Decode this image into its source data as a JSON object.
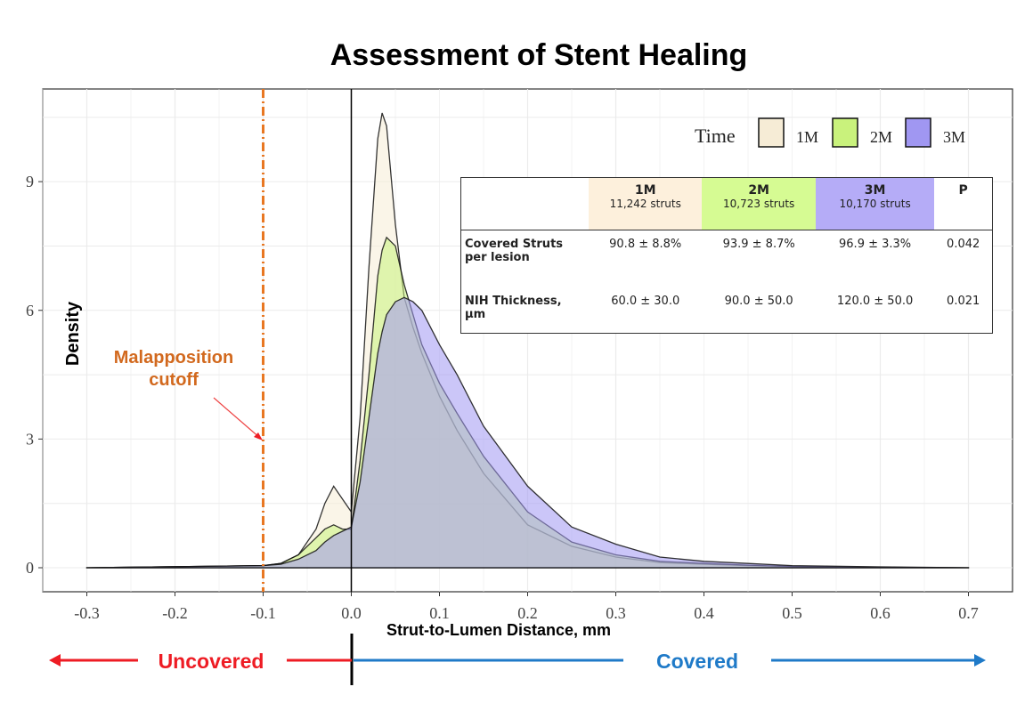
{
  "chart_data": {
    "type": "area",
    "title": "Assessment of Stent Healing",
    "xlabel": "Strut-to-Lumen Distance, mm",
    "ylabel": "Density",
    "xlim": [
      -0.35,
      0.75
    ],
    "ylim": [
      -0.56,
      11.16
    ],
    "xticks": [
      -0.3,
      -0.2,
      -0.1,
      0.0,
      0.1,
      0.2,
      0.3,
      0.4,
      0.5,
      0.6,
      0.7
    ],
    "xtick_labels": [
      "-0.3",
      "-0.2",
      "-0.1",
      "0.0",
      "0.1",
      "0.2",
      "0.3",
      "0.4",
      "0.5",
      "0.6",
      "0.7"
    ],
    "yticks": [
      0,
      3,
      6,
      9
    ],
    "ytick_labels": [
      "0",
      "3",
      "6",
      "9"
    ],
    "grid": true,
    "legend": {
      "title": "Time",
      "placement": "top-right"
    },
    "x": [
      -0.3,
      -0.1,
      -0.08,
      -0.06,
      -0.04,
      -0.03,
      -0.02,
      -0.01,
      0,
      0.01,
      0.02,
      0.03,
      0.035,
      0.04,
      0.05,
      0.06,
      0.07,
      0.08,
      0.1,
      0.12,
      0.15,
      0.2,
      0.25,
      0.3,
      0.35,
      0.4,
      0.45,
      0.5,
      0.6,
      0.7
    ],
    "series": [
      {
        "name": "1M",
        "color": "#f6ecd6",
        "values": [
          0,
          0.05,
          0.1,
          0.3,
          0.9,
          1.5,
          1.9,
          1.6,
          1.3,
          3.5,
          7,
          10,
          10.6,
          10.3,
          8,
          6.3,
          5.6,
          5.0,
          4.0,
          3.2,
          2.2,
          1.0,
          0.5,
          0.25,
          0.12,
          0.08,
          0.05,
          0.03,
          0.01,
          0
        ]
      },
      {
        "name": "2M",
        "color": "#c9f27c",
        "values": [
          0,
          0.05,
          0.1,
          0.3,
          0.7,
          0.9,
          1.0,
          0.9,
          0.9,
          2.5,
          4.5,
          6.8,
          7.4,
          7.7,
          7.5,
          6.6,
          5.9,
          5.2,
          4.3,
          3.6,
          2.6,
          1.3,
          0.6,
          0.3,
          0.15,
          0.1,
          0.06,
          0.03,
          0.01,
          0
        ]
      },
      {
        "name": "3M",
        "color": "#a097f2",
        "values": [
          0,
          0.05,
          0.08,
          0.2,
          0.4,
          0.6,
          0.75,
          0.85,
          0.95,
          2.0,
          3.5,
          5.0,
          5.5,
          5.9,
          6.2,
          6.3,
          6.2,
          6.0,
          5.2,
          4.5,
          3.3,
          1.9,
          0.95,
          0.55,
          0.25,
          0.15,
          0.1,
          0.05,
          0.02,
          0
        ]
      }
    ],
    "reference_lines": [
      {
        "x": -0.1,
        "label": "Malapposition cutoff",
        "color": "#e87722"
      },
      {
        "x": 0.0,
        "color": "#000000"
      }
    ],
    "annotations": {
      "uncovered": "Uncovered",
      "covered": "Covered",
      "uncovered_color": "#ee1c24",
      "covered_color": "#1f7ac8",
      "cutoff_label_color": "#d2691e"
    }
  },
  "table": {
    "columns": [
      {
        "label": "1M",
        "sub": "11,242 struts",
        "color": "#fdf0dc"
      },
      {
        "label": "2M",
        "sub": "10,723 struts",
        "color": "#d6fb93"
      },
      {
        "label": "3M",
        "sub": "10,170 struts",
        "color": "#b5acf7"
      },
      {
        "label": "P",
        "sub": ""
      }
    ],
    "rows": [
      {
        "label": "Covered Struts per lesion",
        "values": [
          "90.8 ± 8.8%",
          "93.9 ± 8.7%",
          "96.9 ± 3.3%",
          "0.042"
        ]
      },
      {
        "label": "NIH Thickness, µm",
        "values": [
          "60.0 ± 30.0",
          "90.0 ± 50.0",
          "120.0 ± 50.0",
          "0.021"
        ]
      }
    ]
  }
}
